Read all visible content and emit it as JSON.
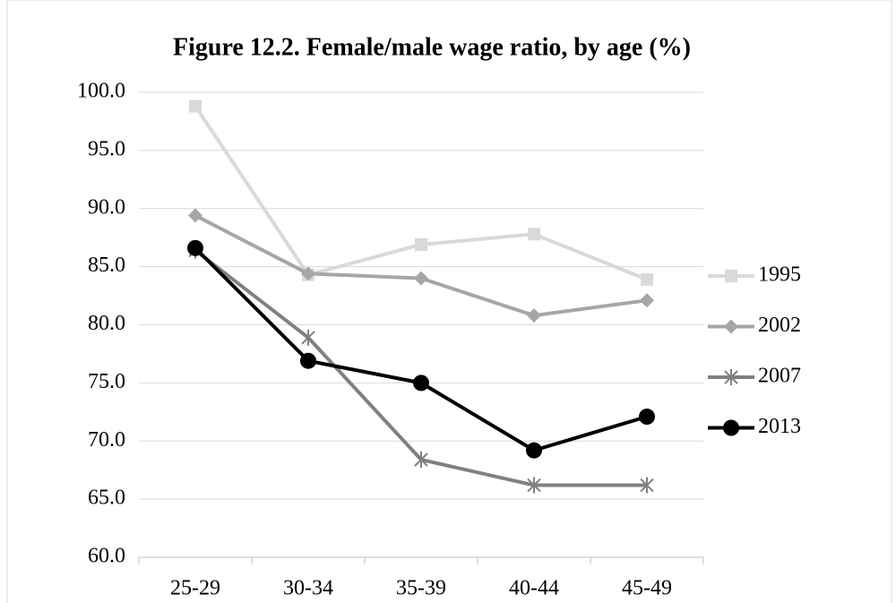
{
  "chart_data": {
    "type": "line",
    "title": "Figure 12.2. Female/male wage ratio, by age (%)",
    "categories": [
      "25-29",
      "30-34",
      "35-39",
      "40-44",
      "45-49"
    ],
    "series": [
      {
        "name": "1995",
        "color": "#d9d9d9",
        "marker": "square",
        "values": [
          98.8,
          84.3,
          86.9,
          87.8,
          83.9
        ]
      },
      {
        "name": "2002",
        "color": "#a6a6a6",
        "marker": "diamond",
        "values": [
          89.4,
          84.4,
          84.0,
          80.8,
          82.1
        ]
      },
      {
        "name": "2007",
        "color": "#808080",
        "marker": "asterisk",
        "values": [
          86.4,
          78.9,
          68.4,
          66.2,
          66.2
        ]
      },
      {
        "name": "2013",
        "color": "#000000",
        "marker": "circle",
        "values": [
          86.6,
          76.9,
          75.0,
          69.2,
          72.1
        ]
      }
    ],
    "ylim": [
      60,
      100
    ],
    "yticks": [
      {
        "value": 60,
        "label": "60.0"
      },
      {
        "value": 65,
        "label": "65.0"
      },
      {
        "value": 70,
        "label": "70.0"
      },
      {
        "value": 75,
        "label": "75.0"
      },
      {
        "value": 80,
        "label": "80.0"
      },
      {
        "value": 85,
        "label": "85.0"
      },
      {
        "value": 90,
        "label": "90.0"
      },
      {
        "value": 95,
        "label": "95.0"
      },
      {
        "value": 100,
        "label": "100.0"
      }
    ],
    "grid": true,
    "legend": "right"
  }
}
